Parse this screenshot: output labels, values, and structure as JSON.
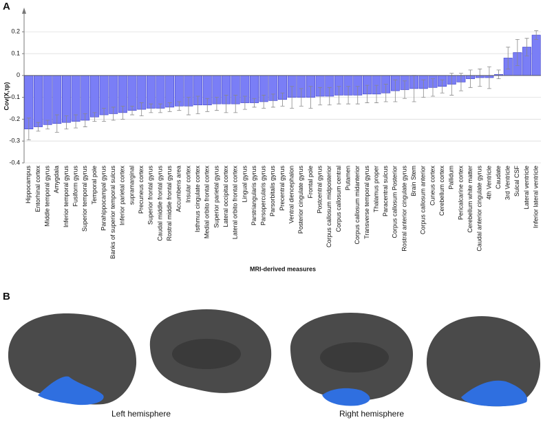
{
  "panel_labels": [
    "A",
    "B"
  ],
  "chart_data": {
    "type": "bar",
    "y_label": "Cov(X,τp)",
    "x_label": "MRI-derived measures",
    "categories": [
      "Hippocampus",
      "Entorhinal cortex",
      "Middle temporal gyrus",
      "Amygdala",
      "Inferior temporal gyrus",
      "Fusiform gyrus",
      "Superior temporal gyrus",
      "Temporal pole",
      "Parahippocampal gyrus",
      "Banks of superior temporal sulcus",
      "Inferior parietal cortex",
      "supramarginal",
      "Precuneus cortex",
      "Superior frontal gyrus",
      "Caudal middle frontal gyrus",
      "Rostral middle frontal gyrus",
      "Accumbens area",
      "Insular cortex",
      "Isthmus cingulate cortex",
      "Medial orbito frontal cortex",
      "Superior parietal gyrus",
      "Lateral occipital cortex",
      "Lateral orbito frontal cortex",
      "Lingual gyrus",
      "Parstriangularis gyrus",
      "Parsopercularis gyrus",
      "Parsorbitalis gyrus",
      "Precentral gyrus",
      "Ventral diencephalon",
      "Posterior cingulate gyrus",
      "Frontal pole",
      "Postcentral gyrus",
      "Corpus callosum midposterior",
      "Corpus callosum central",
      "Putamen",
      "Corpus callosum midanterior",
      "Transverse temporal gyrus",
      "Thalamus proper",
      "Paracentral sulcus",
      "Corpus callosum Posterior",
      "Rostral anterior cingulate gyrus",
      "Brain Stem",
      "Corpus callosum anterior",
      "Cuneus cortex",
      "Cerebellum cortex",
      "Pallidum",
      "Pericalcarine cortex",
      "Cerebellum white matter",
      "Caudal anterior cingulate gyrus",
      "4th Ventricle",
      "Caudate",
      "3rd Ventricle",
      "Sulcal CSF",
      "Lateral ventricle",
      "Inferior lateral ventricle"
    ],
    "values": [
      -0.245,
      -0.235,
      -0.225,
      -0.22,
      -0.215,
      -0.21,
      -0.205,
      -0.19,
      -0.18,
      -0.175,
      -0.17,
      -0.16,
      -0.155,
      -0.15,
      -0.15,
      -0.145,
      -0.14,
      -0.14,
      -0.135,
      -0.135,
      -0.13,
      -0.13,
      -0.13,
      -0.125,
      -0.125,
      -0.12,
      -0.115,
      -0.11,
      -0.1,
      -0.1,
      -0.1,
      -0.095,
      -0.095,
      -0.09,
      -0.09,
      -0.09,
      -0.085,
      -0.085,
      -0.08,
      -0.07,
      -0.065,
      -0.06,
      -0.06,
      -0.055,
      -0.05,
      -0.04,
      -0.03,
      -0.015,
      -0.01,
      -0.01,
      0.005,
      0.08,
      0.105,
      0.13,
      0.185
    ],
    "errors": [
      0.05,
      0.02,
      0.02,
      0.04,
      0.03,
      0.03,
      0.03,
      0.02,
      0.03,
      0.03,
      0.03,
      0.02,
      0.03,
      0.02,
      0.02,
      0.02,
      0.02,
      0.04,
      0.04,
      0.03,
      0.03,
      0.04,
      0.04,
      0.03,
      0.02,
      0.03,
      0.03,
      0.03,
      0.05,
      0.04,
      0.05,
      0.04,
      0.04,
      0.04,
      0.04,
      0.04,
      0.04,
      0.04,
      0.04,
      0.05,
      0.04,
      0.06,
      0.04,
      0.04,
      0.03,
      0.05,
      0.04,
      0.04,
      0.04,
      0.05,
      0.02,
      0.05,
      0.06,
      0.04,
      0.02
    ],
    "color": "#7a7ef6",
    "ylim": [
      -0.4,
      0.27
    ],
    "yticks": [
      -0.4,
      -0.3,
      -0.2,
      -0.1,
      0,
      0.1,
      0.2
    ],
    "grid": true
  },
  "brain_figure": {
    "captions": [
      "Left hemisphere",
      "Right hemisphere"
    ]
  }
}
